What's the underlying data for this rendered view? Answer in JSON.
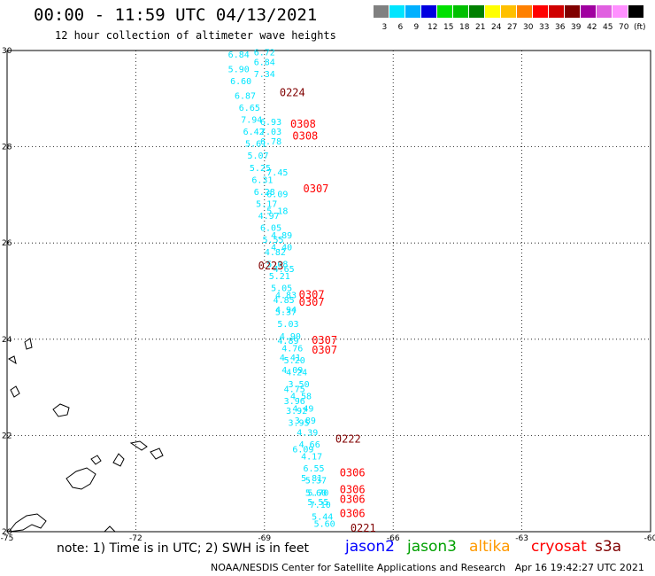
{
  "header": {
    "title": "00:00 - 11:59 UTC 04/13/2021",
    "subtitle": "12 hour collection of altimeter wave heights"
  },
  "colorbar": {
    "unit_label": "(ft)",
    "bins": [
      {
        "label": "3",
        "color": "#808080"
      },
      {
        "label": "6",
        "color": "#00e5ff"
      },
      {
        "label": "9",
        "color": "#00b0ff"
      },
      {
        "label": "12",
        "color": "#0000e0"
      },
      {
        "label": "15",
        "color": "#00e000"
      },
      {
        "label": "18",
        "color": "#00c000"
      },
      {
        "label": "21",
        "color": "#008000"
      },
      {
        "label": "24",
        "color": "#ffff00"
      },
      {
        "label": "27",
        "color": "#ffc000"
      },
      {
        "label": "30",
        "color": "#ff8000"
      },
      {
        "label": "33",
        "color": "#ff0000"
      },
      {
        "label": "36",
        "color": "#d00000"
      },
      {
        "label": "39",
        "color": "#800000"
      },
      {
        "label": "42",
        "color": "#a000a0"
      },
      {
        "label": "45",
        "color": "#e060e0"
      },
      {
        "label": "70",
        "color": "#ff90ff"
      },
      {
        "label": "",
        "color": "#000000"
      }
    ]
  },
  "footer": {
    "note": "note: 1) Time is in UTC; 2) SWH is in feet",
    "satellites": [
      {
        "name": "jason2",
        "color": "#0000ff"
      },
      {
        "name": "jason3",
        "color": "#00a000"
      },
      {
        "name": "altika",
        "color": "#ff9900"
      },
      {
        "name": "cryosat",
        "color": "#ff0000"
      },
      {
        "name": "s3a",
        "color": "#800000"
      }
    ],
    "credit": "NOAA/NESDIS Center for Satellite Applications and Research   Apr 16 19:42:27 UTC 2021"
  },
  "chart_data": {
    "type": "scatter",
    "title": "00:00 - 11:59 UTC 04/13/2021",
    "subtitle": "12 hour collection of altimeter wave heights",
    "xlim": [
      -75,
      -60
    ],
    "ylim": [
      20,
      30
    ],
    "x_ticks": [
      "-75",
      "-72",
      "-69",
      "-66",
      "-63",
      "-60"
    ],
    "y_ticks": [
      "20",
      "22",
      "24",
      "26",
      "28",
      "30"
    ],
    "grid": true,
    "colors": {
      "wave_height": "#00e5ff",
      "pass_label": "#ff0000",
      "pass_label_dark": "#800000"
    },
    "swh_points": [
      {
        "lon": -69.6,
        "lat": 29.85,
        "v": "6.84"
      },
      {
        "lon": -69.6,
        "lat": 29.55,
        "v": "5.90"
      },
      {
        "lon": -69.55,
        "lat": 29.3,
        "v": "6.60"
      },
      {
        "lon": -69.45,
        "lat": 29.0,
        "v": "6.87"
      },
      {
        "lon": -69.35,
        "lat": 28.75,
        "v": "6.65"
      },
      {
        "lon": -69.3,
        "lat": 28.5,
        "v": "7.94"
      },
      {
        "lon": -69.25,
        "lat": 28.25,
        "v": "6.42"
      },
      {
        "lon": -69.2,
        "lat": 28.0,
        "v": "5.61"
      },
      {
        "lon": -69.15,
        "lat": 27.75,
        "v": "5.07"
      },
      {
        "lon": -69.1,
        "lat": 27.5,
        "v": "5.25"
      },
      {
        "lon": -69.05,
        "lat": 27.25,
        "v": "6.31"
      },
      {
        "lon": -69.0,
        "lat": 27.0,
        "v": "6.28"
      },
      {
        "lon": -68.95,
        "lat": 26.75,
        "v": "5.17"
      },
      {
        "lon": -68.9,
        "lat": 26.5,
        "v": "4.97"
      },
      {
        "lon": -68.85,
        "lat": 26.25,
        "v": "6.05"
      },
      {
        "lon": -68.8,
        "lat": 26.0,
        "v": "5.55"
      },
      {
        "lon": -68.75,
        "lat": 25.75,
        "v": "4.82"
      },
      {
        "lon": -68.7,
        "lat": 25.5,
        "v": "5.08"
      },
      {
        "lon": -68.65,
        "lat": 25.25,
        "v": "5.21"
      },
      {
        "lon": -68.6,
        "lat": 25.0,
        "v": "5.05"
      },
      {
        "lon": -68.55,
        "lat": 24.75,
        "v": "4.85"
      },
      {
        "lon": -68.5,
        "lat": 24.5,
        "v": "5.37"
      },
      {
        "lon": -68.45,
        "lat": 24.25,
        "v": "5.03"
      },
      {
        "lon": -68.4,
        "lat": 24.0,
        "v": "4.90"
      },
      {
        "lon": -68.35,
        "lat": 23.75,
        "v": "4.76"
      },
      {
        "lon": -68.3,
        "lat": 23.5,
        "v": "5.20"
      },
      {
        "lon": -68.25,
        "lat": 23.25,
        "v": "4.24"
      },
      {
        "lon": -68.2,
        "lat": 23.0,
        "v": "3.50"
      },
      {
        "lon": -68.15,
        "lat": 22.75,
        "v": "4.58"
      },
      {
        "lon": -68.1,
        "lat": 22.5,
        "v": "4.49"
      },
      {
        "lon": -68.05,
        "lat": 22.25,
        "v": "3.89"
      },
      {
        "lon": -68.0,
        "lat": 22.0,
        "v": "4.39"
      },
      {
        "lon": -67.95,
        "lat": 21.75,
        "v": "4.66"
      },
      {
        "lon": -67.9,
        "lat": 21.5,
        "v": "4.17"
      },
      {
        "lon": -67.85,
        "lat": 21.25,
        "v": "6.55"
      },
      {
        "lon": -67.8,
        "lat": 21.0,
        "v": "5.37"
      },
      {
        "lon": -67.75,
        "lat": 20.75,
        "v": "5.70"
      },
      {
        "lon": -67.7,
        "lat": 20.5,
        "v": "7.10"
      },
      {
        "lon": -67.65,
        "lat": 20.25,
        "v": "5.44"
      },
      {
        "lon": -69.0,
        "lat": 29.9,
        "v": "6.72"
      },
      {
        "lon": -69.0,
        "lat": 29.7,
        "v": "6.84"
      },
      {
        "lon": -69.0,
        "lat": 29.45,
        "v": "7.34"
      },
      {
        "lon": -68.85,
        "lat": 28.45,
        "v": "6.93"
      },
      {
        "lon": -68.85,
        "lat": 28.25,
        "v": "7.03"
      },
      {
        "lon": -68.85,
        "lat": 28.05,
        "v": "6.78"
      },
      {
        "lon": -68.7,
        "lat": 27.4,
        "v": "7.45"
      },
      {
        "lon": -68.7,
        "lat": 26.95,
        "v": "6.09"
      },
      {
        "lon": -68.7,
        "lat": 26.6,
        "v": "5.18"
      },
      {
        "lon": -68.6,
        "lat": 26.1,
        "v": "4.89"
      },
      {
        "lon": -68.6,
        "lat": 25.85,
        "v": "4.40"
      },
      {
        "lon": -68.55,
        "lat": 25.4,
        "v": "4.65"
      },
      {
        "lon": -68.5,
        "lat": 24.85,
        "v": "4.83"
      },
      {
        "lon": -68.5,
        "lat": 24.55,
        "v": "4.94"
      },
      {
        "lon": -68.45,
        "lat": 23.9,
        "v": "4.89"
      },
      {
        "lon": -68.4,
        "lat": 23.55,
        "v": "4.41"
      },
      {
        "lon": -68.35,
        "lat": 23.3,
        "v": "4.09"
      },
      {
        "lon": -68.3,
        "lat": 22.9,
        "v": "4.75"
      },
      {
        "lon": -68.3,
        "lat": 22.65,
        "v": "3.96"
      },
      {
        "lon": -68.25,
        "lat": 22.45,
        "v": "3.92"
      },
      {
        "lon": -68.2,
        "lat": 22.2,
        "v": "3.95"
      },
      {
        "lon": -68.1,
        "lat": 21.65,
        "v": "6.09"
      },
      {
        "lon": -67.9,
        "lat": 21.05,
        "v": "5.81"
      },
      {
        "lon": -67.8,
        "lat": 20.75,
        "v": "5.60"
      },
      {
        "lon": -67.75,
        "lat": 20.55,
        "v": "5.55"
      },
      {
        "lon": -67.6,
        "lat": 20.1,
        "v": "5.60"
      }
    ],
    "pass_labels": [
      {
        "lon": -68.35,
        "lat": 29.05,
        "v": "0224",
        "dark": true
      },
      {
        "lon": -68.1,
        "lat": 28.4,
        "v": "0308",
        "dark": false
      },
      {
        "lon": -68.05,
        "lat": 28.15,
        "v": "0308",
        "dark": false
      },
      {
        "lon": -67.8,
        "lat": 27.05,
        "v": "0307",
        "dark": false
      },
      {
        "lon": -68.85,
        "lat": 25.45,
        "v": "0223",
        "dark": true
      },
      {
        "lon": -67.9,
        "lat": 24.85,
        "v": "0307",
        "dark": false
      },
      {
        "lon": -67.9,
        "lat": 24.7,
        "v": "0307",
        "dark": false
      },
      {
        "lon": -67.6,
        "lat": 23.9,
        "v": "0307",
        "dark": false
      },
      {
        "lon": -67.6,
        "lat": 23.7,
        "v": "0307",
        "dark": false
      },
      {
        "lon": -67.05,
        "lat": 21.85,
        "v": "0222",
        "dark": true
      },
      {
        "lon": -66.95,
        "lat": 21.15,
        "v": "0306",
        "dark": false
      },
      {
        "lon": -66.95,
        "lat": 20.8,
        "v": "0306",
        "dark": false
      },
      {
        "lon": -66.95,
        "lat": 20.6,
        "v": "0306",
        "dark": false
      },
      {
        "lon": -66.95,
        "lat": 20.3,
        "v": "0306",
        "dark": false
      },
      {
        "lon": -66.7,
        "lat": 20.0,
        "v": "0221",
        "dark": true
      }
    ]
  }
}
